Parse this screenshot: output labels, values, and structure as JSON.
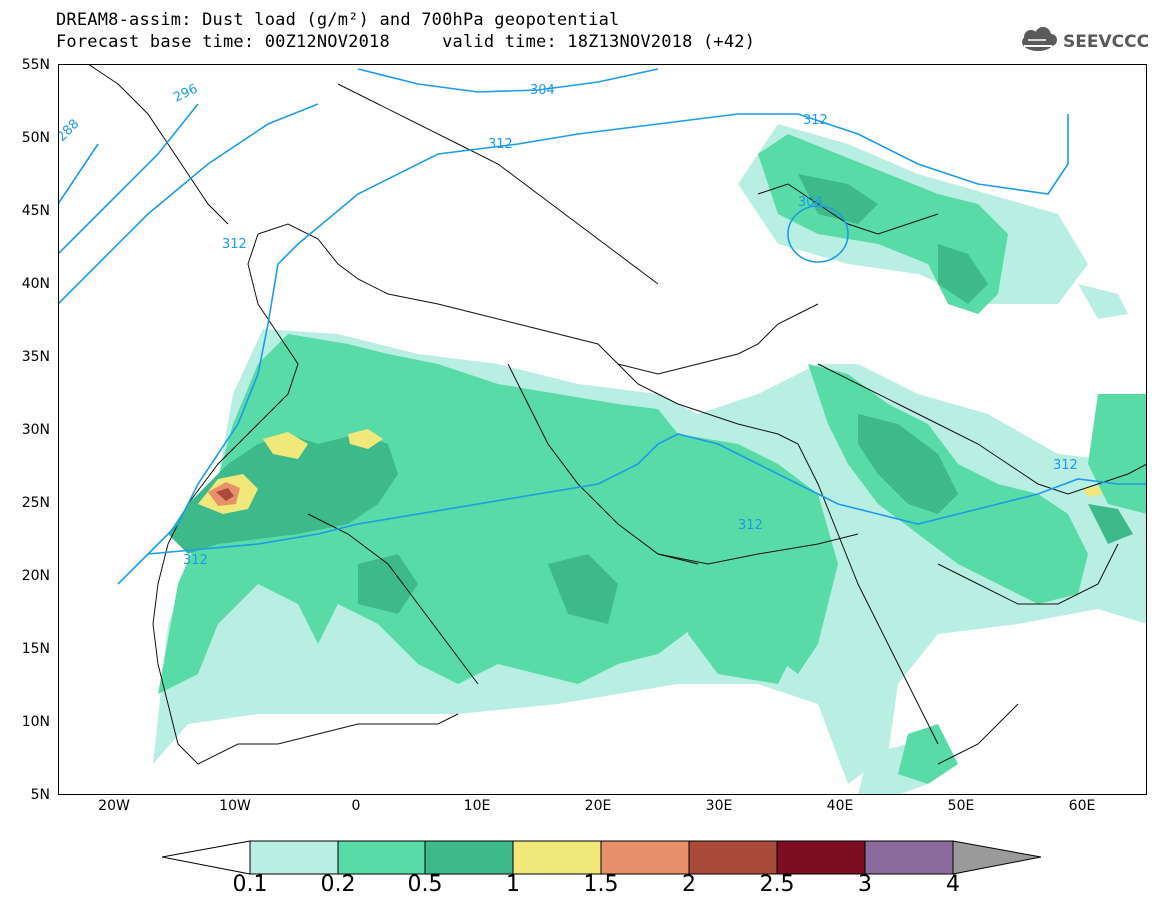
{
  "header": {
    "title_line_1": "DREAM8-assim: Dust load (g/m²) and 700hPa geopotential",
    "title_line_2": "Forecast base time: 00Z12NOV2018     valid time: 18Z13NOV2018 (+42)",
    "logo_text": "SEEVCCC"
  },
  "map": {
    "lat_labels": [
      "55N",
      "50N",
      "45N",
      "40N",
      "35N",
      "30N",
      "25N",
      "20N",
      "15N",
      "10N",
      "5N"
    ],
    "lon_labels": [
      "20W",
      "10W",
      "0",
      "10E",
      "20E",
      "30E",
      "40E",
      "50E",
      "60E"
    ],
    "contour_labels": [
      "288",
      "296",
      "304",
      "312",
      "312",
      "312",
      "304",
      "312",
      "312",
      "312",
      "312"
    ],
    "extent": {
      "lon": [
        -25,
        65
      ],
      "lat": [
        5,
        55
      ]
    }
  },
  "colorbar": {
    "levels": [
      "0.1",
      "0.2",
      "0.5",
      "1",
      "1.5",
      "2",
      "2.5",
      "3",
      "4"
    ],
    "colors": [
      "#ffffff",
      "#b9efe3",
      "#58dba7",
      "#3eb98a",
      "#f0e87a",
      "#e89069",
      "#a94a3b",
      "#7c0d22",
      "#8a6a9a",
      "#9a9a9a"
    ]
  }
}
